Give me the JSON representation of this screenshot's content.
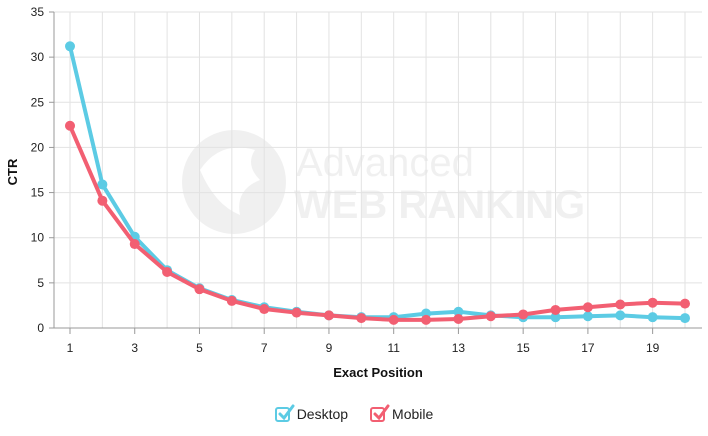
{
  "chart_data": {
    "type": "line",
    "xlabel": "Exact Position",
    "ylabel": "CTR",
    "x": [
      1,
      2,
      3,
      4,
      5,
      6,
      7,
      8,
      9,
      10,
      11,
      12,
      13,
      14,
      15,
      16,
      17,
      18,
      19,
      20
    ],
    "xticks": [
      1,
      3,
      5,
      7,
      9,
      11,
      13,
      15,
      17,
      19
    ],
    "yticks": [
      0,
      5,
      10,
      15,
      20,
      25,
      30,
      35
    ],
    "xlim": [
      1,
      20
    ],
    "ylim": [
      0,
      35
    ],
    "grid": true,
    "legend_position": "bottom",
    "series": [
      {
        "name": "Desktop",
        "color": "#5ccbe4",
        "values": [
          31.2,
          15.9,
          10.1,
          6.4,
          4.4,
          3.1,
          2.3,
          1.8,
          1.4,
          1.2,
          1.2,
          1.6,
          1.8,
          1.4,
          1.2,
          1.2,
          1.3,
          1.4,
          1.2,
          1.1
        ]
      },
      {
        "name": "Mobile",
        "color": "#f25f72",
        "values": [
          22.4,
          14.1,
          9.3,
          6.2,
          4.3,
          3.0,
          2.1,
          1.7,
          1.4,
          1.1,
          0.9,
          0.9,
          1.0,
          1.3,
          1.5,
          2.0,
          2.3,
          2.6,
          2.8,
          2.7
        ]
      }
    ]
  }
}
